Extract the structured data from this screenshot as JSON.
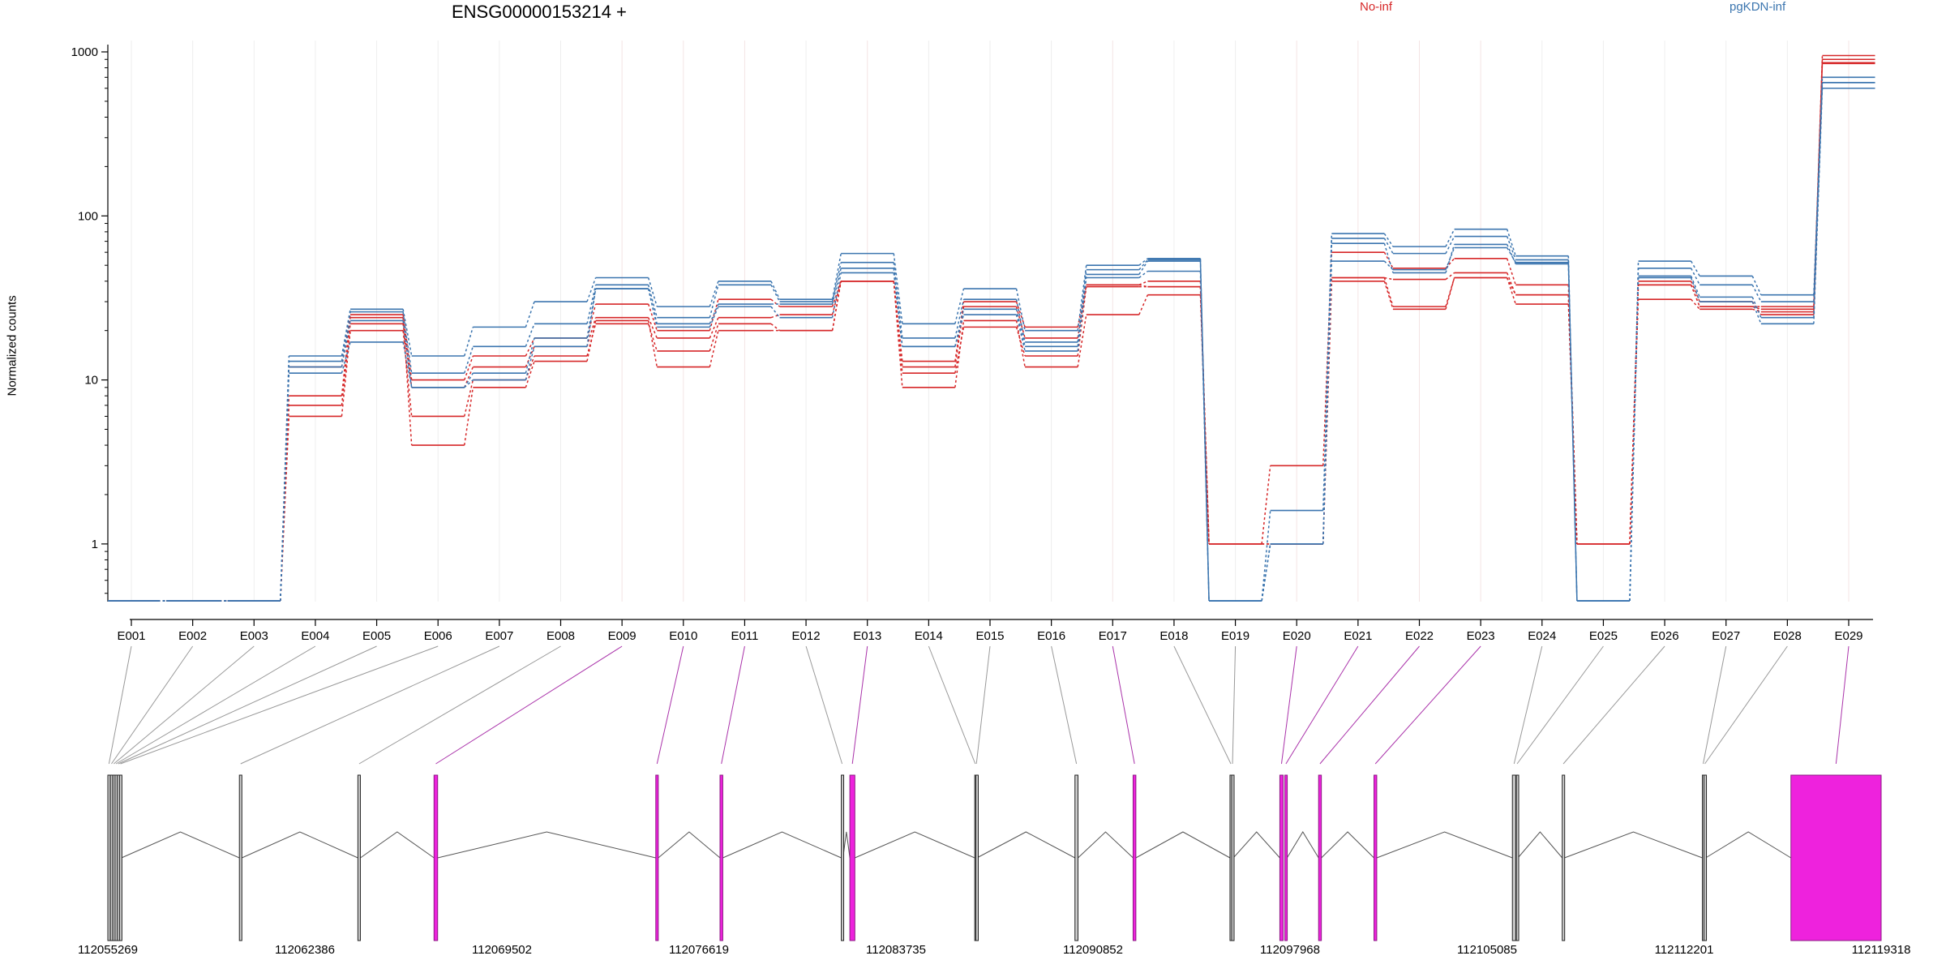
{
  "chart_data": {
    "type": "line",
    "title": "ENSG00000153214 +",
    "ylabel": "Normalized counts",
    "xlabel": "",
    "yscale": "log",
    "ylim": [
      0.45,
      1000
    ],
    "yticks": [
      1,
      10,
      100,
      1000
    ],
    "ytick_labels": [
      "1",
      "10",
      "100",
      "1000"
    ],
    "grid": "vertical light lines at exon positions",
    "legend": [
      {
        "name": "No-inf",
        "color": "#d62728"
      },
      {
        "name": "pgKDN-inf",
        "color": "#3b75af"
      }
    ],
    "exons": [
      "E001",
      "E002",
      "E003",
      "E004",
      "E005",
      "E006",
      "E007",
      "E008",
      "E009",
      "E010",
      "E011",
      "E012",
      "E013",
      "E014",
      "E015",
      "E016",
      "E017",
      "E018",
      "E019",
      "E020",
      "E021",
      "E022",
      "E023",
      "E024",
      "E025",
      "E026",
      "E027",
      "E028",
      "E029"
    ],
    "series": [
      {
        "group": "No-inf",
        "values": [
          0.45,
          0.45,
          0.45,
          8,
          25,
          10,
          14,
          18,
          29,
          20,
          31,
          28,
          40,
          13,
          30,
          21,
          38,
          37,
          1.0,
          3.0,
          60,
          48,
          55,
          38,
          1.0,
          38,
          28,
          28,
          950
        ]
      },
      {
        "group": "No-inf",
        "values": [
          0.45,
          0.45,
          0.45,
          7,
          22,
          9,
          12,
          16,
          24,
          18,
          24,
          25,
          40,
          12,
          28,
          18,
          38,
          40,
          1.0,
          1.0,
          42,
          41,
          45,
          33,
          1.0,
          38,
          28,
          27,
          900
        ]
      },
      {
        "group": "No-inf",
        "values": [
          0.45,
          0.45,
          0.45,
          6,
          20,
          6,
          10,
          14,
          22,
          15,
          22,
          20,
          40,
          9,
          23,
          12,
          25,
          33,
          1.0,
          1.0,
          42,
          28,
          42,
          29,
          1.0,
          31,
          27,
          26,
          850
        ]
      },
      {
        "group": "No-inf",
        "values": [
          0.45,
          0.45,
          0.45,
          12,
          24,
          4,
          9,
          13,
          23,
          12,
          20,
          20,
          40,
          11,
          21,
          14,
          37,
          37,
          1.0,
          1.0,
          40,
          27,
          42,
          33,
          1.0,
          40,
          30,
          25,
          860
        ]
      },
      {
        "group": "pgKDN-inf",
        "values": [
          0.45,
          0.45,
          0.45,
          14,
          27,
          14,
          21,
          30,
          42,
          28,
          40,
          31,
          59,
          22,
          36,
          20,
          50,
          55,
          0.45,
          1.6,
          78,
          65,
          83,
          57,
          0.45,
          53,
          43,
          33,
          700
        ]
      },
      {
        "group": "pgKDN-inf",
        "values": [
          0.45,
          0.45,
          0.45,
          13,
          26,
          11,
          16,
          22,
          38,
          24,
          38,
          30,
          52,
          18,
          31,
          17,
          47,
          54,
          0.45,
          1.0,
          73,
          59,
          75,
          54,
          0.45,
          48,
          38,
          30,
          650
        ]
      },
      {
        "group": "pgKDN-inf",
        "values": [
          0.45,
          0.45,
          0.45,
          12,
          23,
          9,
          11,
          18,
          36,
          22,
          29,
          29,
          48,
          16,
          27,
          16,
          44,
          53,
          0.45,
          1.0,
          68,
          45,
          67,
          51,
          0.45,
          43,
          32,
          24,
          650
        ]
      },
      {
        "group": "pgKDN-inf",
        "values": [
          0.45,
          0.45,
          0.45,
          11,
          17,
          9,
          10,
          16,
          36,
          21,
          28,
          24,
          45,
          16,
          25,
          15,
          42,
          46,
          0.45,
          1.0,
          53,
          47,
          64,
          52,
          0.45,
          42,
          30,
          22,
          600
        ]
      }
    ]
  },
  "gene_model": {
    "ticks": [
      "112055269",
      "112062386",
      "112069502",
      "112076619",
      "112083735",
      "112090852",
      "112097968",
      "112105085",
      "112112201",
      "112119318"
    ],
    "genome_range": [
      112055269,
      112119318
    ],
    "exons": [
      {
        "id": "E001",
        "start": 112055269,
        "end": 112055350,
        "de": false
      },
      {
        "id": "E002",
        "start": 112055360,
        "end": 112055440,
        "de": false
      },
      {
        "id": "E003",
        "start": 112055450,
        "end": 112055520,
        "de": false
      },
      {
        "id": "E004",
        "start": 112055530,
        "end": 112055600,
        "de": false
      },
      {
        "id": "E005",
        "start": 112055610,
        "end": 112055680,
        "de": false
      },
      {
        "id": "E006",
        "start": 112055690,
        "end": 112055760,
        "de": false
      },
      {
        "id": "E007",
        "start": 112060020,
        "end": 112060110,
        "de": false
      },
      {
        "id": "E008",
        "start": 112064300,
        "end": 112064390,
        "de": false
      },
      {
        "id": "E009",
        "start": 112067050,
        "end": 112067180,
        "de": true
      },
      {
        "id": "E010",
        "start": 112075060,
        "end": 112075150,
        "de": true
      },
      {
        "id": "E011",
        "start": 112077380,
        "end": 112077480,
        "de": true
      },
      {
        "id": "E012",
        "start": 112081760,
        "end": 112081820,
        "de": false
      },
      {
        "id": "E013",
        "start": 112082070,
        "end": 112082250,
        "de": true
      },
      {
        "id": "E014",
        "start": 112086580,
        "end": 112086620,
        "de": false
      },
      {
        "id": "E015",
        "start": 112086620,
        "end": 112086660,
        "de": false
      },
      {
        "id": "E016",
        "start": 112090200,
        "end": 112090310,
        "de": false
      },
      {
        "id": "E017",
        "start": 112092300,
        "end": 112092400,
        "de": true
      },
      {
        "id": "E018",
        "start": 112095800,
        "end": 112095860,
        "de": false
      },
      {
        "id": "E019",
        "start": 112095860,
        "end": 112095920,
        "de": false
      },
      {
        "id": "E020",
        "start": 112097600,
        "end": 112097720,
        "de": true
      },
      {
        "id": "E021",
        "start": 112097780,
        "end": 112097860,
        "de": true
      },
      {
        "id": "E022",
        "start": 112099000,
        "end": 112099100,
        "de": true
      },
      {
        "id": "E023",
        "start": 112101000,
        "end": 112101100,
        "de": true
      },
      {
        "id": "E024",
        "start": 112106000,
        "end": 112106120,
        "de": false
      },
      {
        "id": "E025",
        "start": 112106140,
        "end": 112106200,
        "de": false
      },
      {
        "id": "E026",
        "start": 112107800,
        "end": 112107880,
        "de": false
      },
      {
        "id": "E027",
        "start": 112112860,
        "end": 112112920,
        "de": false
      },
      {
        "id": "E028",
        "start": 112112920,
        "end": 112112980,
        "de": false
      },
      {
        "id": "E029",
        "start": 112116060,
        "end": 112119318,
        "de": true
      }
    ]
  },
  "colors": {
    "no_inf": "#d62728",
    "pgkdn_inf": "#3b75af",
    "de_exon": "#ee22dd",
    "connector": "#999999",
    "de_connector": "#aa33aa",
    "grid": "#eeeeee"
  }
}
